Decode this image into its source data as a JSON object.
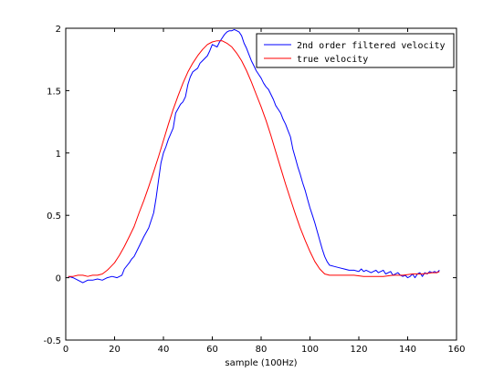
{
  "chart_data": {
    "type": "line",
    "title": "",
    "xlabel": "sample (100Hz)",
    "ylabel": "",
    "xlim": [
      0,
      160
    ],
    "ylim": [
      -0.5,
      2
    ],
    "x_ticks": [
      0,
      20,
      40,
      60,
      80,
      100,
      120,
      140,
      160
    ],
    "x_tick_labels": [
      "0",
      "20",
      "40",
      "60",
      "80",
      "100",
      "120",
      "140",
      "160"
    ],
    "y_ticks": [
      -0.5,
      0,
      0.5,
      1,
      1.5,
      2
    ],
    "y_tick_labels": [
      "-0.5",
      "0",
      "0.5",
      "1",
      "1.5",
      "2"
    ],
    "grid": false,
    "legend_position": "top-right",
    "series": [
      {
        "name": "2nd order filtered velocity",
        "color": "#0000ff",
        "points": [
          [
            1,
            0.01
          ],
          [
            3,
            0.0
          ],
          [
            5,
            -0.02
          ],
          [
            7,
            -0.04
          ],
          [
            9,
            -0.02
          ],
          [
            11,
            -0.02
          ],
          [
            13,
            -0.01
          ],
          [
            15,
            -0.02
          ],
          [
            17,
            0.0
          ],
          [
            19,
            0.01
          ],
          [
            21,
            0.0
          ],
          [
            23,
            0.02
          ],
          [
            24,
            0.07
          ],
          [
            26,
            0.12
          ],
          [
            27,
            0.15
          ],
          [
            28,
            0.17
          ],
          [
            30,
            0.25
          ],
          [
            32,
            0.33
          ],
          [
            34,
            0.4
          ],
          [
            36,
            0.52
          ],
          [
            37,
            0.64
          ],
          [
            38,
            0.78
          ],
          [
            39,
            0.92
          ],
          [
            40,
            1.0
          ],
          [
            41,
            1.05
          ],
          [
            42,
            1.11
          ],
          [
            44,
            1.2
          ],
          [
            45,
            1.32
          ],
          [
            47,
            1.39
          ],
          [
            48,
            1.41
          ],
          [
            49,
            1.45
          ],
          [
            50,
            1.55
          ],
          [
            51,
            1.61
          ],
          [
            52,
            1.65
          ],
          [
            54,
            1.68
          ],
          [
            55,
            1.72
          ],
          [
            56,
            1.74
          ],
          [
            58,
            1.78
          ],
          [
            59,
            1.82
          ],
          [
            60,
            1.87
          ],
          [
            61,
            1.86
          ],
          [
            62,
            1.85
          ],
          [
            63,
            1.89
          ],
          [
            64,
            1.92
          ],
          [
            65,
            1.95
          ],
          [
            66,
            1.97
          ],
          [
            67,
            1.98
          ],
          [
            68,
            1.98
          ],
          [
            69,
            1.99
          ],
          [
            70,
            1.98
          ],
          [
            71,
            1.97
          ],
          [
            72,
            1.94
          ],
          [
            73,
            1.88
          ],
          [
            74,
            1.84
          ],
          [
            75,
            1.79
          ],
          [
            76,
            1.74
          ],
          [
            77,
            1.7
          ],
          [
            78,
            1.66
          ],
          [
            79,
            1.63
          ],
          [
            80,
            1.6
          ],
          [
            81,
            1.56
          ],
          [
            82,
            1.53
          ],
          [
            83,
            1.51
          ],
          [
            84,
            1.47
          ],
          [
            85,
            1.43
          ],
          [
            86,
            1.38
          ],
          [
            87,
            1.35
          ],
          [
            88,
            1.32
          ],
          [
            89,
            1.27
          ],
          [
            90,
            1.23
          ],
          [
            91,
            1.18
          ],
          [
            92,
            1.13
          ],
          [
            93,
            1.03
          ],
          [
            94,
            0.96
          ],
          [
            95,
            0.89
          ],
          [
            96,
            0.83
          ],
          [
            97,
            0.76
          ],
          [
            98,
            0.7
          ],
          [
            99,
            0.63
          ],
          [
            100,
            0.56
          ],
          [
            101,
            0.5
          ],
          [
            102,
            0.44
          ],
          [
            103,
            0.37
          ],
          [
            104,
            0.3
          ],
          [
            105,
            0.23
          ],
          [
            106,
            0.17
          ],
          [
            107,
            0.13
          ],
          [
            108,
            0.1
          ],
          [
            110,
            0.09
          ],
          [
            112,
            0.08
          ],
          [
            114,
            0.07
          ],
          [
            116,
            0.06
          ],
          [
            118,
            0.06
          ],
          [
            120,
            0.05
          ],
          [
            121,
            0.07
          ],
          [
            122,
            0.05
          ],
          [
            123,
            0.06
          ],
          [
            125,
            0.04
          ],
          [
            127,
            0.06
          ],
          [
            128,
            0.04
          ],
          [
            130,
            0.06
          ],
          [
            131,
            0.03
          ],
          [
            133,
            0.05
          ],
          [
            134,
            0.02
          ],
          [
            136,
            0.04
          ],
          [
            137,
            0.02
          ],
          [
            138,
            0.01
          ],
          [
            139,
            0.02
          ],
          [
            140,
            0.0
          ],
          [
            141,
            0.01
          ],
          [
            142,
            0.03
          ],
          [
            143,
            0.0
          ],
          [
            144,
            0.03
          ],
          [
            145,
            0.04
          ],
          [
            146,
            0.01
          ],
          [
            147,
            0.04
          ],
          [
            148,
            0.03
          ],
          [
            149,
            0.05
          ],
          [
            150,
            0.04
          ],
          [
            151,
            0.05
          ],
          [
            152,
            0.04
          ],
          [
            153,
            0.06
          ]
        ]
      },
      {
        "name": "true velocity",
        "color": "#ff0000",
        "points": [
          [
            1,
            0.01
          ],
          [
            3,
            0.01
          ],
          [
            5,
            0.02
          ],
          [
            7,
            0.02
          ],
          [
            9,
            0.01
          ],
          [
            11,
            0.02
          ],
          [
            13,
            0.02
          ],
          [
            15,
            0.03
          ],
          [
            17,
            0.06
          ],
          [
            18,
            0.08
          ],
          [
            20,
            0.12
          ],
          [
            22,
            0.18
          ],
          [
            24,
            0.25
          ],
          [
            26,
            0.33
          ],
          [
            28,
            0.41
          ],
          [
            30,
            0.52
          ],
          [
            32,
            0.62
          ],
          [
            34,
            0.73
          ],
          [
            36,
            0.85
          ],
          [
            38,
            0.97
          ],
          [
            40,
            1.1
          ],
          [
            42,
            1.23
          ],
          [
            44,
            1.35
          ],
          [
            46,
            1.46
          ],
          [
            48,
            1.56
          ],
          [
            50,
            1.65
          ],
          [
            52,
            1.72
          ],
          [
            54,
            1.78
          ],
          [
            56,
            1.83
          ],
          [
            58,
            1.87
          ],
          [
            60,
            1.89
          ],
          [
            62,
            1.9
          ],
          [
            64,
            1.9
          ],
          [
            66,
            1.88
          ],
          [
            68,
            1.85
          ],
          [
            70,
            1.8
          ],
          [
            72,
            1.74
          ],
          [
            74,
            1.66
          ],
          [
            76,
            1.57
          ],
          [
            78,
            1.47
          ],
          [
            80,
            1.37
          ],
          [
            82,
            1.26
          ],
          [
            84,
            1.14
          ],
          [
            86,
            1.01
          ],
          [
            88,
            0.88
          ],
          [
            90,
            0.75
          ],
          [
            92,
            0.63
          ],
          [
            94,
            0.51
          ],
          [
            96,
            0.4
          ],
          [
            98,
            0.3
          ],
          [
            100,
            0.21
          ],
          [
            102,
            0.13
          ],
          [
            104,
            0.07
          ],
          [
            106,
            0.03
          ],
          [
            108,
            0.02
          ],
          [
            110,
            0.02
          ],
          [
            114,
            0.02
          ],
          [
            118,
            0.02
          ],
          [
            122,
            0.01
          ],
          [
            126,
            0.01
          ],
          [
            130,
            0.01
          ],
          [
            134,
            0.02
          ],
          [
            138,
            0.02
          ],
          [
            142,
            0.03
          ],
          [
            146,
            0.03
          ],
          [
            150,
            0.04
          ],
          [
            152,
            0.04
          ],
          [
            153,
            0.05
          ]
        ]
      }
    ]
  }
}
